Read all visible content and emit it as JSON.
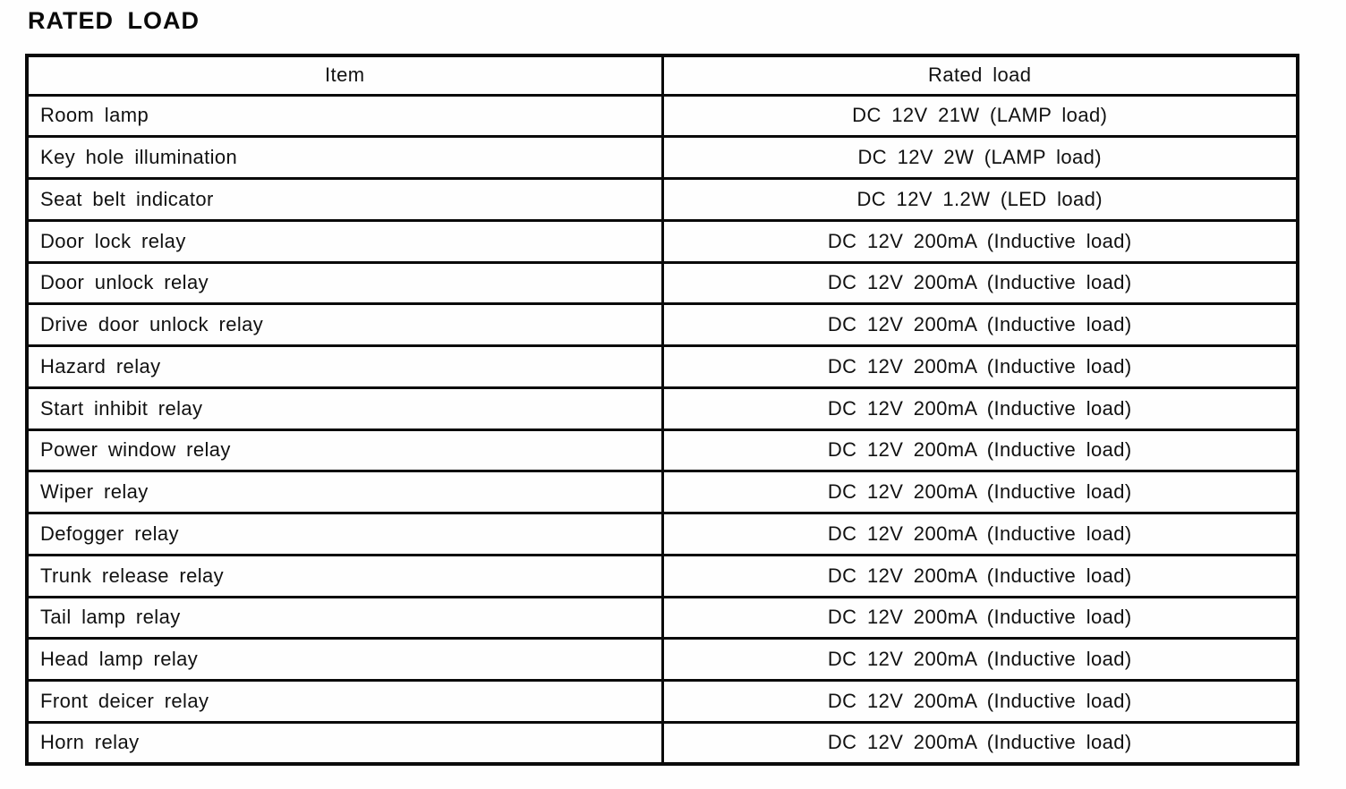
{
  "page": {
    "title": "RATED LOAD"
  },
  "table": {
    "headers": {
      "item": "Item",
      "rated_load": "Rated load"
    },
    "rows": [
      {
        "item": "Room lamp",
        "rated_load": "DC 12V 21W (LAMP load)"
      },
      {
        "item": "Key hole illumination",
        "rated_load": "DC 12V 2W (LAMP load)"
      },
      {
        "item": "Seat belt indicator",
        "rated_load": "DC 12V 1.2W (LED load)"
      },
      {
        "item": "Door lock relay",
        "rated_load": "DC 12V 200mA (Inductive load)"
      },
      {
        "item": "Door unlock relay",
        "rated_load": "DC 12V 200mA (Inductive load)"
      },
      {
        "item": "Drive door unlock relay",
        "rated_load": "DC 12V 200mA (Inductive load)"
      },
      {
        "item": "Hazard relay",
        "rated_load": "DC 12V 200mA (Inductive load)"
      },
      {
        "item": "Start inhibit relay",
        "rated_load": "DC 12V 200mA (Inductive load)"
      },
      {
        "item": "Power window relay",
        "rated_load": "DC 12V 200mA (Inductive load)"
      },
      {
        "item": "Wiper relay",
        "rated_load": "DC 12V 200mA (Inductive load)"
      },
      {
        "item": "Defogger relay",
        "rated_load": "DC 12V 200mA (Inductive load)"
      },
      {
        "item": "Trunk release relay",
        "rated_load": "DC 12V 200mA (Inductive load)"
      },
      {
        "item": "Tail lamp relay",
        "rated_load": "DC 12V 200mA (Inductive load)"
      },
      {
        "item": "Head lamp relay",
        "rated_load": "DC 12V 200mA (Inductive load)"
      },
      {
        "item": "Front deicer relay",
        "rated_load": "DC 12V 200mA (Inductive load)"
      },
      {
        "item": "Horn relay",
        "rated_load": "DC 12V 200mA (Inductive load)"
      }
    ]
  }
}
